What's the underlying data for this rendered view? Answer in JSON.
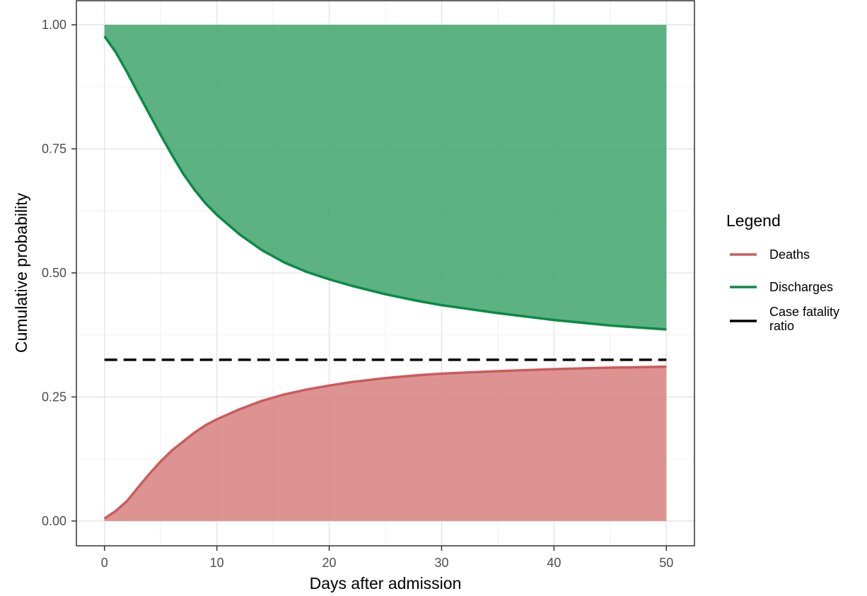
{
  "chart_data": {
    "type": "line",
    "xlabel": "Days after admission",
    "ylabel": "Cumulative probability",
    "xlim": [
      -2.5,
      52.5
    ],
    "ylim": [
      -0.05,
      1.05
    ],
    "x_ticks": [
      0,
      10,
      20,
      30,
      40,
      50
    ],
    "x_tick_labels": [
      "0",
      "10",
      "20",
      "30",
      "40",
      "50"
    ],
    "y_ticks": [
      0,
      0.25,
      0.5,
      0.75,
      1
    ],
    "y_tick_labels": [
      "0.00",
      "0.25",
      "0.50",
      "0.75",
      "1.00"
    ],
    "grid": true,
    "legend": {
      "title": "Legend",
      "placement": "right",
      "entries": [
        {
          "label": "Deaths",
          "color": "#cc5b5b",
          "style": "solid"
        },
        {
          "label": "Discharges",
          "color": "#0a8a47",
          "style": "solid"
        },
        {
          "label_lines": [
            "Case fatality",
            "ratio"
          ],
          "color": "#000000",
          "style": "dashed"
        }
      ]
    },
    "series": [
      {
        "name": "Deaths",
        "color": "#cc5b5b",
        "fill_color": "#d88080",
        "fill_to": 0,
        "x": [
          0,
          1,
          2,
          3,
          4,
          5,
          6,
          7,
          8,
          9,
          10,
          12,
          14,
          16,
          18,
          20,
          22,
          25,
          28,
          30,
          35,
          40,
          45,
          50
        ],
        "values": [
          0.005,
          0.02,
          0.04,
          0.068,
          0.095,
          0.12,
          0.142,
          0.16,
          0.178,
          0.193,
          0.205,
          0.225,
          0.242,
          0.255,
          0.265,
          0.273,
          0.28,
          0.288,
          0.294,
          0.297,
          0.302,
          0.306,
          0.309,
          0.311
        ]
      },
      {
        "name": "Discharges",
        "color": "#0a8a47",
        "fill_color": "#3fa56b",
        "fill_to": 1,
        "x": [
          0,
          1,
          2,
          3,
          4,
          5,
          6,
          7,
          8,
          9,
          10,
          12,
          14,
          16,
          18,
          20,
          22,
          25,
          28,
          30,
          35,
          40,
          45,
          50
        ],
        "values": [
          0.977,
          0.945,
          0.905,
          0.862,
          0.82,
          0.778,
          0.738,
          0.7,
          0.668,
          0.64,
          0.617,
          0.578,
          0.546,
          0.521,
          0.502,
          0.487,
          0.474,
          0.457,
          0.443,
          0.435,
          0.419,
          0.405,
          0.394,
          0.386
        ]
      },
      {
        "name": "Case fatality ratio",
        "color": "#000000",
        "style": "dashed",
        "x": [
          0,
          50
        ],
        "values": [
          0.325,
          0.325
        ]
      }
    ]
  }
}
